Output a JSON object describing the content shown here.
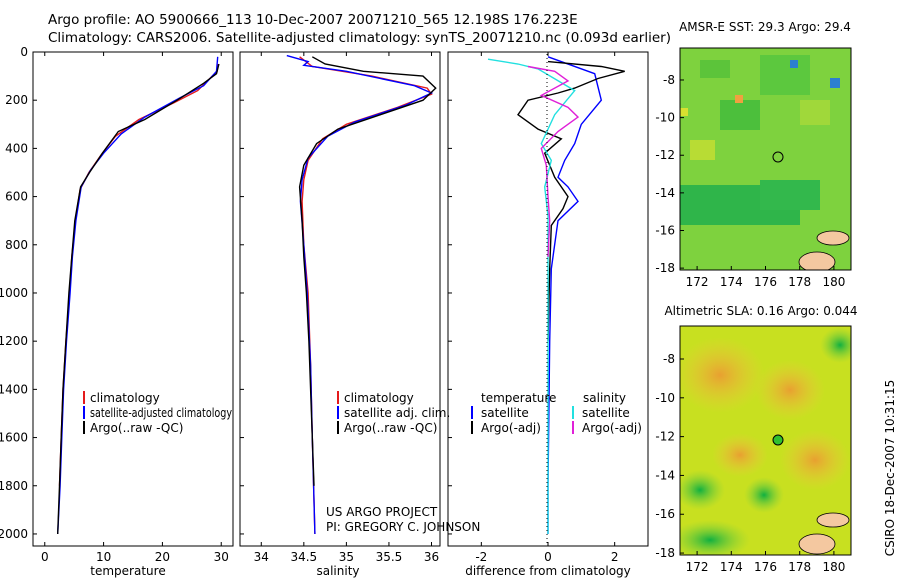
{
  "header": {
    "line1": "Argo profile: AO 5900666_113 10-Dec-2007 20071210_565 12.198S 176.223E",
    "line2": "Climatology: CARS2006. Satellite-adjusted climatology: synTS_20071210.nc (0.093d earlier)"
  },
  "side_stamp": "CSIRO 18-Dec-2007 10:31:15",
  "project": {
    "line1": "US ARGO PROJECT",
    "line2": "PI: GREGORY C. JOHNSON"
  },
  "colors": {
    "red": "#e41a1c",
    "blue": "#0000ff",
    "black": "#000000",
    "cyan": "#22e0e0",
    "magenta": "#e020d8"
  },
  "chart_data": [
    {
      "id": "temperature",
      "type": "line",
      "xlabel": "temperature",
      "ylabel": "",
      "xlim": [
        -2,
        32
      ],
      "ylim": [
        2050,
        0
      ],
      "xticks": [
        0,
        10,
        20,
        30
      ],
      "yticks": [
        0,
        200,
        400,
        600,
        800,
        1000,
        1200,
        1400,
        1600,
        1800,
        2000
      ],
      "legend": {
        "position": "bottom-right",
        "entries": [
          "climatology",
          "satellite-adjusted climatology",
          "Argo(..raw -QC)"
        ]
      },
      "series": [
        {
          "name": "climatology",
          "color": "#e41a1c",
          "points": [
            [
              29.5,
              50
            ],
            [
              29.3,
              80
            ],
            [
              26,
              160
            ],
            [
              22,
              210
            ],
            [
              16,
              280
            ],
            [
              12,
              350
            ],
            [
              9.5,
              430
            ],
            [
              7.5,
              500
            ],
            [
              6.0,
              570
            ],
            [
              5.2,
              700
            ],
            [
              4.6,
              850
            ],
            [
              4.2,
              1000
            ],
            [
              3.6,
              1200
            ],
            [
              3.1,
              1400
            ],
            [
              2.8,
              1600
            ],
            [
              2.5,
              1800
            ]
          ]
        },
        {
          "name": "satellite-adjusted climatology",
          "color": "#0000ff",
          "points": [
            [
              29.4,
              20
            ],
            [
              29.2,
              80
            ],
            [
              27,
              140
            ],
            [
              23,
              190
            ],
            [
              17,
              270
            ],
            [
              13,
              340
            ],
            [
              10,
              420
            ],
            [
              7.8,
              490
            ],
            [
              6.2,
              560
            ],
            [
              5.3,
              700
            ],
            [
              4.7,
              850
            ],
            [
              4.3,
              1000
            ],
            [
              3.7,
              1200
            ],
            [
              3.2,
              1400
            ],
            [
              2.9,
              1600
            ],
            [
              2.6,
              1800
            ],
            [
              2.2,
              2000
            ]
          ]
        },
        {
          "name": "Argo(..raw -QC)",
          "color": "#000000",
          "points": [
            [
              29.6,
              50
            ],
            [
              29.2,
              90
            ],
            [
              27,
              130
            ],
            [
              22.5,
              200
            ],
            [
              17,
              280
            ],
            [
              12.5,
              330
            ],
            [
              9.8,
              420
            ],
            [
              7.6,
              500
            ],
            [
              6.1,
              560
            ],
            [
              5.1,
              700
            ],
            [
              4.6,
              850
            ],
            [
              4.1,
              1000
            ],
            [
              3.6,
              1200
            ],
            [
              3.1,
              1400
            ],
            [
              2.8,
              1600
            ],
            [
              2.5,
              1800
            ],
            [
              2.2,
              2000
            ]
          ]
        }
      ]
    },
    {
      "id": "salinity",
      "type": "line",
      "xlabel": "salinity",
      "ylabel": "",
      "xlim": [
        33.75,
        36.1
      ],
      "ylim": [
        2050,
        0
      ],
      "xticks": [
        34,
        34.5,
        35,
        35.5,
        36
      ],
      "yticks": [],
      "legend": {
        "position": "bottom-right",
        "entries": [
          "climatology",
          "satellite adj. clim.",
          "Argo(..raw -QC)"
        ]
      },
      "series": [
        {
          "name": "climatology",
          "color": "#e41a1c",
          "points": [
            [
              34.45,
              20
            ],
            [
              34.6,
              60
            ],
            [
              35.3,
              100
            ],
            [
              35.95,
              150
            ],
            [
              36.0,
              175
            ],
            [
              35.6,
              230
            ],
            [
              35.0,
              300
            ],
            [
              34.72,
              360
            ],
            [
              34.55,
              450
            ],
            [
              34.5,
              530
            ],
            [
              34.48,
              620
            ],
            [
              34.5,
              800
            ],
            [
              34.55,
              1000
            ],
            [
              34.58,
              1300
            ],
            [
              34.6,
              1600
            ],
            [
              34.63,
              2000
            ]
          ]
        },
        {
          "name": "satellite adj. clim.",
          "color": "#0000ff",
          "points": [
            [
              34.3,
              15
            ],
            [
              34.55,
              40
            ],
            [
              34.5,
              55
            ],
            [
              35.0,
              80
            ],
            [
              35.8,
              140
            ],
            [
              36.0,
              170
            ],
            [
              35.7,
              220
            ],
            [
              35.1,
              290
            ],
            [
              34.78,
              350
            ],
            [
              34.55,
              440
            ],
            [
              34.48,
              530
            ],
            [
              34.46,
              620
            ],
            [
              34.5,
              800
            ],
            [
              34.54,
              1000
            ],
            [
              34.58,
              1300
            ],
            [
              34.6,
              1600
            ],
            [
              34.63,
              2000
            ]
          ]
        },
        {
          "name": "Argo(..raw -QC)",
          "color": "#000000",
          "points": [
            [
              34.6,
              20
            ],
            [
              34.75,
              50
            ],
            [
              35.2,
              80
            ],
            [
              35.9,
              100
            ],
            [
              36.05,
              150
            ],
            [
              35.9,
              200
            ],
            [
              35.4,
              260
            ],
            [
              34.9,
              320
            ],
            [
              34.65,
              380
            ],
            [
              34.5,
              470
            ],
            [
              34.45,
              560
            ],
            [
              34.48,
              700
            ],
            [
              34.5,
              850
            ],
            [
              34.53,
              1000
            ],
            [
              34.56,
              1200
            ],
            [
              34.6,
              1600
            ],
            [
              34.62,
              1800
            ]
          ]
        }
      ]
    },
    {
      "id": "difference",
      "type": "line",
      "xlabel": "difference from climatology",
      "ylabel": "",
      "xlim": [
        -3.0,
        3.0
      ],
      "ylim": [
        2050,
        0
      ],
      "xticks": [
        -2,
        0,
        2
      ],
      "yticks": [],
      "legend": {
        "position": "bottom",
        "temperature_title": "temperature",
        "salinity_title": "salinity",
        "entries": [
          "satellite",
          "Argo(-adj)",
          "satellite",
          "Argo(-adj)"
        ]
      },
      "series": [
        {
          "name": "temperature satellite",
          "color": "#0000ff",
          "points": [
            [
              0,
              20
            ],
            [
              1.4,
              90
            ],
            [
              1.6,
              200
            ],
            [
              1.0,
              300
            ],
            [
              0.8,
              380
            ],
            [
              0.5,
              450
            ],
            [
              0.3,
              520
            ],
            [
              0.6,
              560
            ],
            [
              0.9,
              620
            ],
            [
              0.3,
              700
            ],
            [
              0.1,
              900
            ],
            [
              0.05,
              1200
            ],
            [
              0,
              1800
            ],
            [
              0,
              2000
            ]
          ]
        },
        {
          "name": "temperature Argo(-adj)",
          "color": "#000000",
          "points": [
            [
              0,
              40
            ],
            [
              1.6,
              60
            ],
            [
              2.3,
              80
            ],
            [
              1.5,
              110
            ],
            [
              0.8,
              150
            ],
            [
              0.3,
              170
            ],
            [
              -0.6,
              200
            ],
            [
              -0.9,
              260
            ],
            [
              -0.3,
              320
            ],
            [
              0.4,
              360
            ],
            [
              -0.1,
              420
            ],
            [
              0.2,
              520
            ],
            [
              0.6,
              600
            ],
            [
              0.45,
              650
            ],
            [
              0.1,
              720
            ],
            [
              0.05,
              900
            ],
            [
              0,
              1200
            ]
          ]
        },
        {
          "name": "salinity satellite",
          "color": "#22e0e0",
          "points": [
            [
              -1.8,
              30
            ],
            [
              -0.9,
              50
            ],
            [
              -0.3,
              70
            ],
            [
              0.8,
              160
            ],
            [
              0.2,
              260
            ],
            [
              -0.2,
              380
            ],
            [
              0.1,
              450
            ],
            [
              -0.1,
              560
            ],
            [
              0,
              680
            ],
            [
              0,
              1000
            ],
            [
              0,
              1400
            ],
            [
              0,
              2000
            ]
          ]
        },
        {
          "name": "salinity Argo(-adj)",
          "color": "#e020d8",
          "points": [
            [
              -0.6,
              60
            ],
            [
              0.2,
              80
            ],
            [
              0.6,
              120
            ],
            [
              -0.2,
              180
            ],
            [
              0.6,
              230
            ],
            [
              0.9,
              270
            ],
            [
              0.3,
              330
            ],
            [
              -0.2,
              400
            ],
            [
              -0.05,
              470
            ],
            [
              0,
              600
            ],
            [
              0.05,
              700
            ],
            [
              0,
              850
            ]
          ]
        }
      ]
    },
    {
      "id": "sst_map",
      "type": "heatmap",
      "title": "AMSR-E SST: 29.3 Argo: 29.4",
      "xlim": [
        171,
        181
      ],
      "ylim": [
        -18.1,
        -6.3
      ],
      "xticks": [
        172,
        174,
        176,
        178,
        180
      ],
      "yticks": [
        -8,
        -10,
        -12,
        -14,
        -16,
        -18
      ],
      "argo_position": [
        176.2,
        -12.2
      ]
    },
    {
      "id": "sla_map",
      "type": "heatmap",
      "title": "Altimetric SLA: 0.16 Argo: 0.044",
      "xlim": [
        171,
        181
      ],
      "ylim": [
        -18.1,
        -6.3
      ],
      "xticks": [
        172,
        174,
        176,
        178,
        180
      ],
      "yticks": [
        -8,
        -10,
        -12,
        -14,
        -16,
        -18
      ],
      "argo_position": [
        176.2,
        -12.2
      ]
    }
  ]
}
